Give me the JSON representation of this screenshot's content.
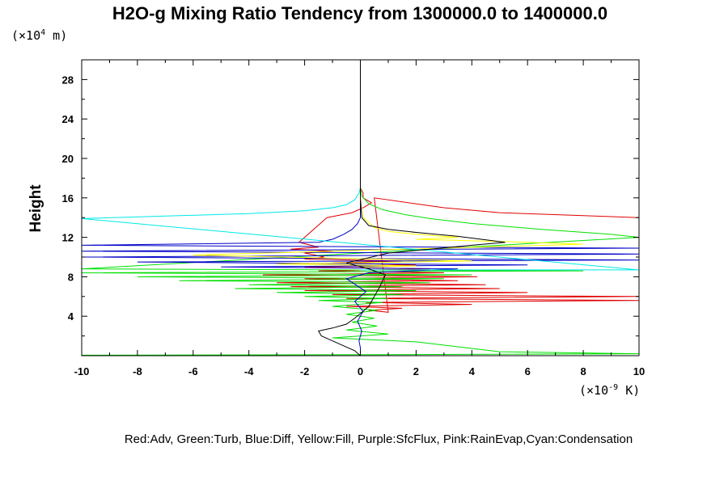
{
  "chart_data": {
    "type": "line",
    "title": "H2O-g Mixing Ratio Tendency from 1300000.0 to 1400000.0",
    "ylabel": "Height",
    "y_unit": {
      "prefix": "(×10",
      "exp": "4",
      "suffix": " m)"
    },
    "x_unit": {
      "prefix": "(×10",
      "exp": "-9",
      "suffix": " K)"
    },
    "xlim": [
      -10,
      10
    ],
    "ylim": [
      0,
      30
    ],
    "x_ticks": [
      "-10",
      "-8",
      "-6",
      "-4",
      "-2",
      "0",
      "2",
      "4",
      "6",
      "8",
      "10"
    ],
    "y_ticks": [
      "4",
      "8",
      "12",
      "16",
      "20",
      "24",
      "28"
    ],
    "legend_text": "Red:Adv, Green:Turb, Blue:Diff, Yellow:Fill, Purple:SfcFlux, Pink:RainEvap,Cyan:Condensation",
    "grid": false,
    "colors": {
      "adv": "#e00000",
      "turb": "#00e000",
      "diff": "#0000c8",
      "fill": "#ffff00",
      "condensation": "#00e8e8",
      "total": "#000000"
    },
    "series": [
      {
        "name": "Red:Adv",
        "color": "#e00000",
        "x": [
          0,
          0,
          0,
          0.1,
          0.1,
          0.4,
          0.1,
          -0.3,
          -1.2,
          -2.2,
          -1.5,
          -2.5,
          -1.0,
          -2.0,
          -1.6,
          -1.3,
          -2.0,
          1.5,
          -1.0,
          2.0,
          -2.0,
          2.5,
          -1.5,
          3.0,
          -3.5,
          4.2,
          -2.0,
          3.5,
          -3.0,
          4.5,
          -2.5,
          5.0,
          -2.0,
          6.0,
          -1.0,
          10,
          -0.5,
          10,
          0.2,
          4.0,
          -0.5,
          1.5,
          0.3,
          1.0,
          0.5,
          3.0,
          5.0,
          8.0,
          10
        ],
        "y": [
          30,
          20,
          17,
          16.5,
          16.0,
          15.5,
          15.0,
          14.5,
          14.0,
          11.5,
          11.0,
          10.8,
          10.6,
          10.4,
          10.2,
          10.0,
          9.8,
          9.6,
          9.4,
          9.2,
          9.0,
          8.8,
          8.6,
          8.4,
          8.2,
          8.0,
          7.8,
          7.6,
          7.4,
          7.2,
          7.0,
          6.8,
          6.6,
          6.4,
          6.2,
          6.0,
          5.8,
          5.6,
          5.4,
          5.2,
          5.0,
          4.8,
          4.6,
          4.4,
          16.0,
          15.0,
          14.5,
          14.2,
          14.0
        ]
      },
      {
        "name": "Green:Turb",
        "color": "#00e000",
        "x": [
          0,
          0,
          0.05,
          0.3,
          0.8,
          1.6,
          2.5,
          4.0,
          6.5,
          9.0,
          10,
          -10,
          8.0,
          -10,
          4.0,
          -8.0,
          3.0,
          -6.5,
          2.5,
          -4.0,
          1.5,
          -4.5,
          2.0,
          -3.0,
          1.5,
          -2.0,
          1.0,
          -1.5,
          0.8,
          -1.0,
          0.6,
          -0.5,
          0.5,
          -0.3,
          0.6,
          -0.5,
          1.0,
          -1.0,
          2.0,
          5.0,
          10,
          0.5,
          -10
        ],
        "y": [
          30,
          17,
          16.2,
          15.4,
          14.8,
          14.3,
          13.9,
          13.4,
          12.8,
          12.3,
          12.0,
          8.8,
          8.6,
          8.4,
          8.2,
          8.0,
          7.8,
          7.6,
          7.4,
          7.2,
          7.0,
          6.8,
          6.6,
          6.4,
          6.2,
          6.0,
          5.8,
          5.6,
          5.4,
          5.0,
          4.6,
          4.2,
          3.8,
          3.4,
          3.0,
          2.6,
          2.2,
          1.8,
          1.4,
          0.4,
          0.2,
          0.1,
          0.05
        ]
      },
      {
        "name": "Blue:Diff",
        "color": "#0000c8",
        "x": [
          0,
          0,
          0,
          0,
          -0.1,
          -0.3,
          -0.6,
          -1.0,
          -1.5,
          -10,
          10,
          -10,
          10,
          -10,
          10,
          -8.0,
          6.0,
          -5.0,
          3.5,
          0.3,
          -0.5,
          0.2,
          -0.2,
          0.1,
          -0.1,
          0.05,
          -0.05,
          0,
          0
        ],
        "y": [
          30,
          17,
          15.5,
          14.0,
          13.4,
          12.8,
          12.3,
          11.8,
          11.5,
          11.2,
          10.9,
          10.6,
          10.3,
          10.0,
          9.7,
          9.5,
          9.2,
          9.0,
          8.8,
          8.4,
          7.8,
          6.5,
          5.5,
          4.5,
          3.5,
          2.5,
          1.5,
          0.8,
          0
        ]
      },
      {
        "name": "Yellow:Fill",
        "color": "#ffff00",
        "x": [
          0,
          0,
          0.1,
          0.5,
          1.0,
          2.0,
          3.5,
          2.0,
          6.0,
          8.0,
          -6.0,
          4.0,
          -3.0,
          2.0,
          0
        ],
        "y": [
          30,
          16,
          14.0,
          13.0,
          12.6,
          12.3,
          12.0,
          11.8,
          11.5,
          11.3,
          10.2,
          9.6,
          9.3,
          9.1,
          9.0
        ]
      },
      {
        "name": "Cyan:Condensation",
        "color": "#00e8e8",
        "x": [
          0,
          0,
          -0.05,
          -0.2,
          -0.5,
          -1.0,
          -2.0,
          -4.0,
          -6.5,
          -10,
          10,
          0
        ],
        "y": [
          30,
          17,
          16.5,
          15.8,
          15.3,
          15.0,
          14.7,
          14.4,
          14.2,
          13.9,
          8.7,
          8.7
        ]
      },
      {
        "name": "",
        "color": "#000000",
        "x": [
          0,
          0,
          0.05,
          0.3,
          1.0,
          2.0,
          3.5,
          5.2,
          4.0,
          1.0,
          -0.5,
          0.3,
          0.9,
          0.7,
          0.5,
          0.3,
          0.1,
          -0.2,
          -0.5,
          -1.0,
          -1.5,
          -1.4,
          -1.0,
          -0.6,
          -0.2,
          0
        ],
        "y": [
          30,
          16,
          14.0,
          13.2,
          12.8,
          12.5,
          12.1,
          11.5,
          11.2,
          10.4,
          9.4,
          8.8,
          8.2,
          7.0,
          6.0,
          5.0,
          4.5,
          3.8,
          3.2,
          2.8,
          2.5,
          2.0,
          1.5,
          1.0,
          0.5,
          0
        ]
      }
    ]
  }
}
